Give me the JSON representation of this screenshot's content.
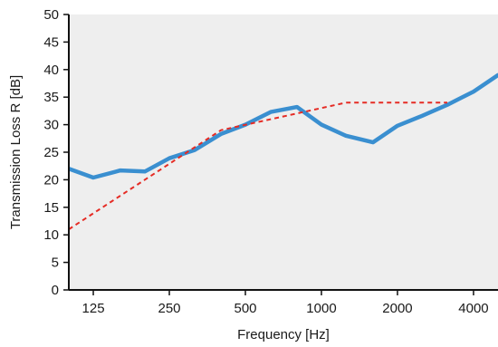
{
  "chart_data": {
    "type": "line",
    "title": "",
    "xlabel": "Frequency [Hz]",
    "ylabel": "Transmission Loss R [dB]",
    "x_scale": "log",
    "xlim": [
      100,
      5000
    ],
    "ylim": [
      0,
      50
    ],
    "x_ticks": [
      125,
      250,
      500,
      1000,
      2000,
      4000
    ],
    "x_tick_labels": [
      "125",
      "250",
      "500",
      "1000",
      "2000",
      "4000"
    ],
    "y_ticks": [
      0,
      5,
      10,
      15,
      20,
      25,
      30,
      35,
      40,
      45,
      50
    ],
    "y_tick_labels": [
      "0",
      "5",
      "10",
      "15",
      "20",
      "25",
      "30",
      "35",
      "40",
      "45",
      "50"
    ],
    "grid": false,
    "plot_background": "#eeeeee",
    "series": [
      {
        "style": "solid",
        "color": "#3a8fd0",
        "points": [
          {
            "x": 100,
            "y": 22.0
          },
          {
            "x": 125,
            "y": 20.4
          },
          {
            "x": 160,
            "y": 21.7
          },
          {
            "x": 200,
            "y": 21.5
          },
          {
            "x": 250,
            "y": 23.9
          },
          {
            "x": 315,
            "y": 25.4
          },
          {
            "x": 400,
            "y": 28.3
          },
          {
            "x": 500,
            "y": 30.0
          },
          {
            "x": 630,
            "y": 32.3
          },
          {
            "x": 800,
            "y": 33.2
          },
          {
            "x": 1000,
            "y": 30.0
          },
          {
            "x": 1250,
            "y": 28.0
          },
          {
            "x": 1600,
            "y": 26.8
          },
          {
            "x": 2000,
            "y": 29.8
          },
          {
            "x": 2500,
            "y": 31.6
          },
          {
            "x": 3150,
            "y": 33.6
          },
          {
            "x": 4000,
            "y": 36.0
          },
          {
            "x": 5000,
            "y": 39.0
          }
        ]
      },
      {
        "style": "dashed",
        "color": "#e52b24",
        "points": [
          {
            "x": 100,
            "y": 11.0
          },
          {
            "x": 400,
            "y": 29.0
          },
          {
            "x": 1250,
            "y": 34.0
          },
          {
            "x": 3150,
            "y": 34.0
          }
        ]
      }
    ]
  }
}
